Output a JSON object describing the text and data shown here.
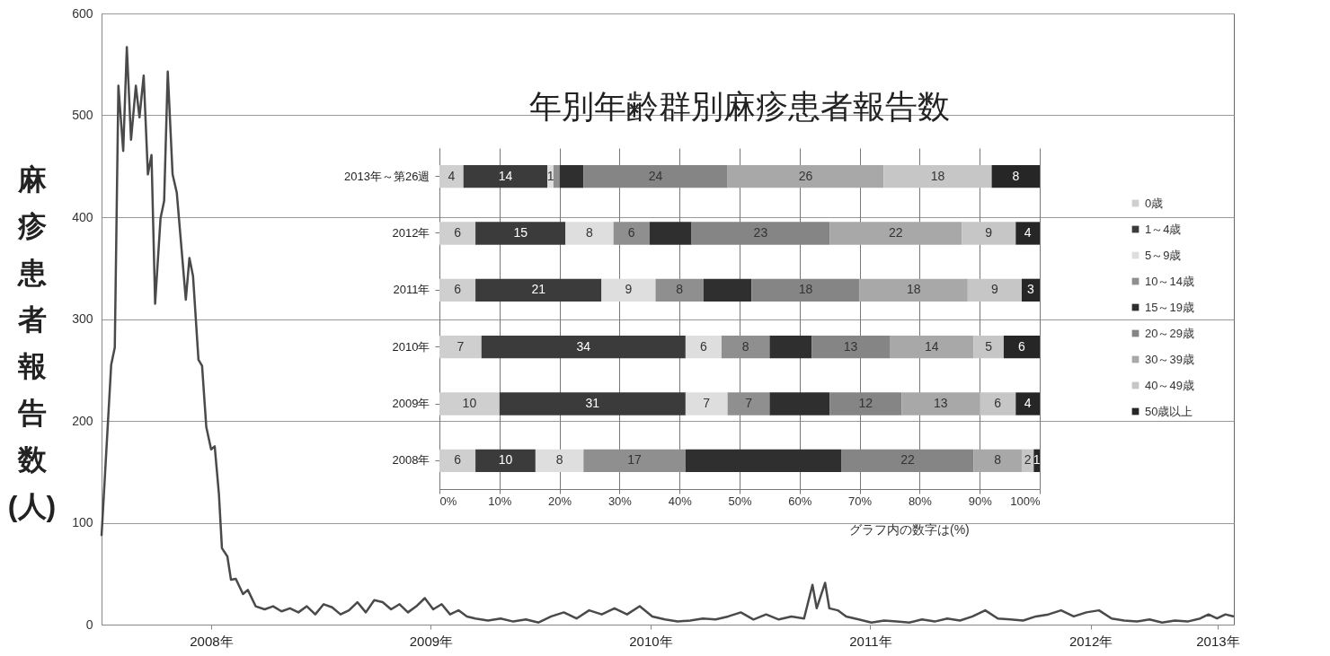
{
  "chart_data": [
    {
      "type": "line",
      "color": "#4a4a4a",
      "ylabel": "麻疹患者報告数(人)",
      "grid": "y",
      "xlim": [
        "2008-01-01",
        "2013-02-24"
      ],
      "xticks": [
        {
          "value": "2008-07-01",
          "label": "2008年"
        },
        {
          "value": "2009-07-01",
          "label": "2009年"
        },
        {
          "value": "2010-07-01",
          "label": "2010年"
        },
        {
          "value": "2011-07-01",
          "label": "2011年"
        },
        {
          "value": "2012-07-01",
          "label": "2012年"
        },
        {
          "value": "2013-01-28",
          "label": "2013年"
        }
      ],
      "ylim": [
        0,
        600
      ],
      "yticks": [
        0,
        100,
        200,
        300,
        400,
        500,
        600
      ],
      "x": [
        "2008-01-01",
        "2008-01-17",
        "2008-01-23",
        "2008-01-29",
        "2008-02-06",
        "2008-02-12",
        "2008-02-19",
        "2008-02-27",
        "2008-03-04",
        "2008-03-11",
        "2008-03-18",
        "2008-03-24",
        "2008-03-30",
        "2008-04-08",
        "2008-04-14",
        "2008-04-20",
        "2008-04-28",
        "2008-05-05",
        "2008-05-20",
        "2008-05-26",
        "2008-06-01",
        "2008-06-10",
        "2008-06-16",
        "2008-06-23",
        "2008-07-01",
        "2008-07-07",
        "2008-07-14",
        "2008-07-19",
        "2008-07-28",
        "2008-08-03",
        "2008-08-11",
        "2008-08-23",
        "2008-08-31",
        "2008-09-13",
        "2008-09-28",
        "2008-10-12",
        "2008-10-26",
        "2008-11-09",
        "2008-11-23",
        "2008-12-07",
        "2008-12-21",
        "2009-01-04",
        "2009-01-18",
        "2009-02-01",
        "2009-02-15",
        "2009-03-01",
        "2009-03-15",
        "2009-03-29",
        "2009-04-12",
        "2009-04-26",
        "2009-05-10",
        "2009-05-24",
        "2009-06-07",
        "2009-06-21",
        "2009-07-05",
        "2009-07-19",
        "2009-08-02",
        "2009-08-16",
        "2009-08-30",
        "2009-09-13",
        "2009-10-04",
        "2009-10-25",
        "2009-11-15",
        "2009-12-06",
        "2009-12-27",
        "2010-01-17",
        "2010-02-07",
        "2010-02-28",
        "2010-03-21",
        "2010-04-11",
        "2010-05-02",
        "2010-05-23",
        "2010-06-13",
        "2010-07-04",
        "2010-07-25",
        "2010-08-15",
        "2010-09-05",
        "2010-09-26",
        "2010-10-17",
        "2010-11-07",
        "2010-11-28",
        "2010-12-19",
        "2011-01-09",
        "2011-01-30",
        "2011-02-20",
        "2011-03-13",
        "2011-03-27",
        "2011-04-03",
        "2011-04-17",
        "2011-04-24",
        "2011-05-08",
        "2011-05-22",
        "2011-06-12",
        "2011-07-03",
        "2011-07-24",
        "2011-08-14",
        "2011-09-04",
        "2011-09-25",
        "2011-10-16",
        "2011-11-06",
        "2011-11-27",
        "2011-12-18",
        "2012-01-08",
        "2012-01-29",
        "2012-02-19",
        "2012-03-11",
        "2012-04-01",
        "2012-04-22",
        "2012-05-13",
        "2012-06-03",
        "2012-06-24",
        "2012-07-15",
        "2012-08-05",
        "2012-08-26",
        "2012-09-16",
        "2012-10-07",
        "2012-10-28",
        "2012-11-18",
        "2012-12-09",
        "2012-12-30",
        "2013-01-13",
        "2013-01-27",
        "2013-02-10",
        "2013-02-24"
      ],
      "values": [
        87,
        255,
        272,
        529,
        465,
        567,
        476,
        529,
        498,
        539,
        442,
        461,
        315,
        399,
        416,
        543,
        442,
        424,
        319,
        360,
        342,
        260,
        254,
        194,
        172,
        175,
        128,
        75,
        67,
        44,
        45,
        30,
        34,
        18,
        15,
        18,
        13,
        16,
        12,
        18,
        10,
        20,
        17,
        10,
        14,
        22,
        12,
        24,
        22,
        15,
        20,
        12,
        18,
        26,
        15,
        20,
        10,
        14,
        8,
        6,
        4,
        6,
        3,
        5,
        2,
        8,
        12,
        6,
        14,
        10,
        16,
        10,
        18,
        8,
        5,
        3,
        4,
        6,
        5,
        8,
        12,
        5,
        10,
        5,
        8,
        6,
        39,
        16,
        41,
        16,
        14,
        8,
        5,
        2,
        4,
        3,
        2,
        5,
        3,
        6,
        4,
        8,
        14,
        6,
        5,
        4,
        8,
        10,
        14,
        8,
        12,
        14,
        6,
        4,
        3,
        5,
        2,
        4,
        3,
        6,
        10,
        6,
        10,
        8
      ]
    },
    {
      "type": "bar",
      "orientation": "horizontal",
      "stacked": true,
      "title": "年別年齢群別麻疹患者報告数",
      "legend": "right",
      "grid": "x",
      "categories": [
        "2013年～第26週",
        "2012年",
        "2011年",
        "2010年",
        "2009年",
        "2008年"
      ],
      "xlim": [
        0,
        100
      ],
      "xticks": [
        {
          "value": 0,
          "label": "0%"
        },
        {
          "value": 10,
          "label": "10%"
        },
        {
          "value": 20,
          "label": "20%"
        },
        {
          "value": 30,
          "label": "30%"
        },
        {
          "value": 40,
          "label": "40%"
        },
        {
          "value": 50,
          "label": "50%"
        },
        {
          "value": 60,
          "label": "60%"
        },
        {
          "value": 70,
          "label": "70%"
        },
        {
          "value": 80,
          "label": "80%"
        },
        {
          "value": 90,
          "label": "90%"
        },
        {
          "value": 100,
          "label": "100%"
        }
      ],
      "annotations": [
        "グラフ内の数字は(%)"
      ],
      "series": [
        {
          "name": "0歳",
          "color": "#cfcfcf",
          "values": [
            4,
            6,
            6,
            7,
            10,
            6
          ],
          "value_labels": [
            "4",
            "6",
            "6",
            "7",
            "10",
            "6"
          ]
        },
        {
          "name": "1～4歳",
          "color": "#3b3b3b",
          "values": [
            14,
            15,
            21,
            34,
            31,
            10
          ],
          "value_labels": [
            "14",
            "15",
            "21",
            "34",
            "31",
            "10"
          ]
        },
        {
          "name": "5～9歳",
          "color": "#dedede",
          "values": [
            1,
            8,
            9,
            6,
            7,
            8
          ],
          "value_labels": [
            "1",
            "8",
            "9",
            "6",
            "7",
            "8"
          ]
        },
        {
          "name": "10～14歳",
          "color": "#8f8f8f",
          "values": [
            1,
            6,
            8,
            8,
            7,
            17
          ],
          "value_labels": [
            null,
            "6",
            "8",
            "8",
            "7",
            "17"
          ]
        },
        {
          "name": "15～19歳",
          "color": "#2f2f2f",
          "values": [
            4,
            7,
            8,
            7,
            10,
            26
          ],
          "value_labels": [
            null,
            null,
            null,
            null,
            null,
            null
          ]
        },
        {
          "name": "20～29歳",
          "color": "#858585",
          "values": [
            24,
            23,
            18,
            13,
            12,
            22
          ],
          "value_labels": [
            "24",
            "23",
            "18",
            "13",
            "12",
            "22"
          ]
        },
        {
          "name": "30～39歳",
          "color": "#a8a8a8",
          "values": [
            26,
            22,
            18,
            14,
            13,
            8
          ],
          "value_labels": [
            "26",
            "22",
            "18",
            "14",
            "13",
            "8"
          ]
        },
        {
          "name": "40～49歳",
          "color": "#c6c6c6",
          "values": [
            18,
            9,
            9,
            5,
            6,
            2
          ],
          "value_labels": [
            "18",
            "9",
            "9",
            "5",
            "6",
            "2"
          ]
        },
        {
          "name": "50歳以上",
          "color": "#262626",
          "values": [
            8,
            4,
            3,
            6,
            4,
            1
          ],
          "value_labels": [
            "8",
            "4",
            "3",
            "6",
            "4",
            "1"
          ]
        }
      ]
    }
  ]
}
